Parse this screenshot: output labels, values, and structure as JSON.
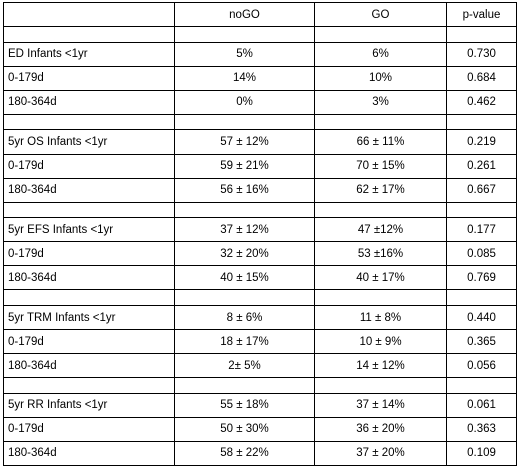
{
  "headers": [
    "",
    "noGO",
    "GO",
    "p-value"
  ],
  "sections": [
    {
      "rows": [
        {
          "label": "ED Infants <1yr",
          "nogo": "5%",
          "go": "6%",
          "p": "0.730"
        },
        {
          "label": "0-179d",
          "nogo": "14%",
          "go": "10%",
          "p": "0.684"
        },
        {
          "label": "180-364d",
          "nogo": "0%",
          "go": "3%",
          "p": "0.462"
        }
      ]
    },
    {
      "rows": [
        {
          "label": "5yr OS Infants <1yr",
          "nogo": "57 ± 12%",
          "go": "66 ± 11%",
          "p": "0.219"
        },
        {
          "label": "0-179d",
          "nogo": "59 ± 21%",
          "go": "70 ± 15%",
          "p": "0.261"
        },
        {
          "label": "180-364d",
          "nogo": "56  ± 16%",
          "go": "62 ± 17%",
          "p": "0.667"
        }
      ]
    },
    {
      "rows": [
        {
          "label": "5yr EFS Infants <1yr",
          "nogo": "37 ± 12%",
          "go": "47 ±12%",
          "p": "0.177"
        },
        {
          "label": "0-179d",
          "nogo": "32 ± 20%",
          "go": "53 ±16%",
          "p": "0.085"
        },
        {
          "label": "180-364d",
          "nogo": "40 ± 15%",
          "go": "40 ± 17%",
          "p": "0.769"
        }
      ]
    },
    {
      "rows": [
        {
          "label": "5yr TRM Infants <1yr",
          "nogo": "8 ± 6%",
          "go": "11 ± 8%",
          "p": "0.440"
        },
        {
          "label": "0-179d",
          "nogo": "18 ± 17%",
          "go": "10 ± 9%",
          "p": "0.365"
        },
        {
          "label": "180-364d",
          "nogo": "2± 5%",
          "go": "14 ± 12%",
          "p": "0.056"
        }
      ]
    },
    {
      "rows": [
        {
          "label": "5yr RR Infants <1yr",
          "nogo": "55 ± 18%",
          "go": "37 ± 14%",
          "p": "0.061"
        },
        {
          "label": "0-179d",
          "nogo": "50 ± 30%",
          "go": "36 ± 20%",
          "p": "0.363"
        },
        {
          "label": "180-364d",
          "nogo": "58 ± 22%",
          "go": "37 ± 20%",
          "p": "0.109"
        }
      ]
    }
  ]
}
